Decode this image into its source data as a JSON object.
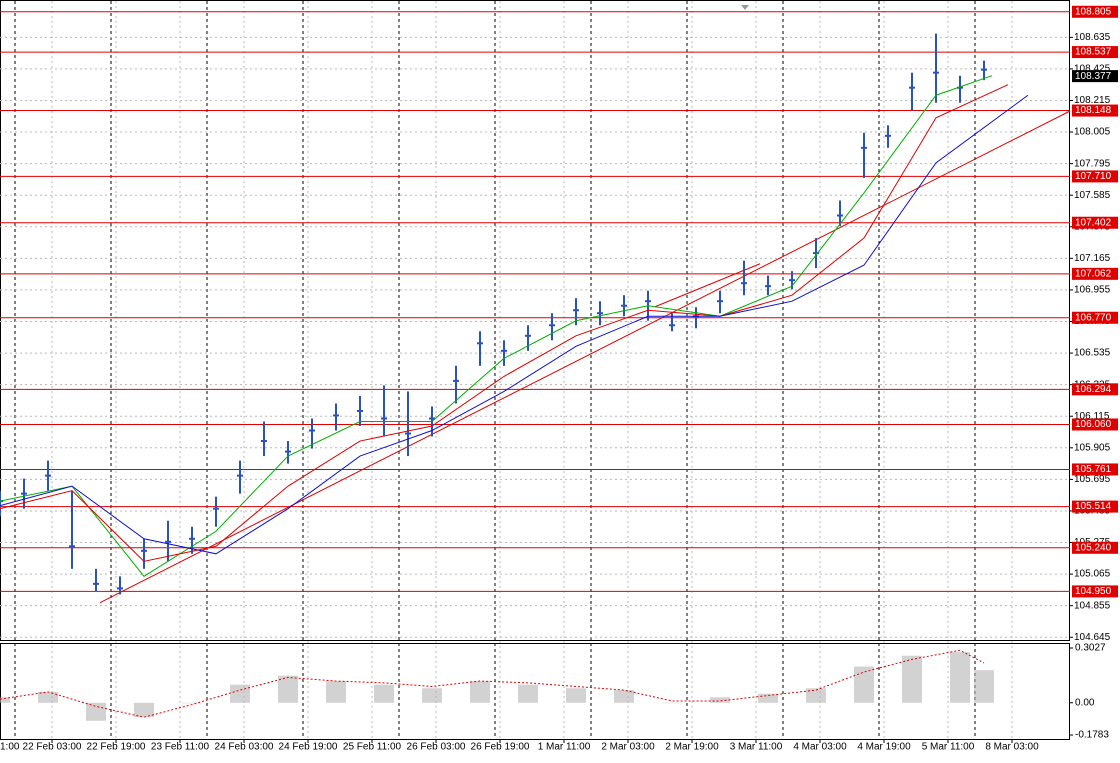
{
  "chart_data": {
    "type": "candlestick",
    "color": "#2a52be",
    "x": [
      3,
      9,
      15,
      21,
      27,
      33,
      39,
      45,
      51,
      57,
      63,
      69,
      75,
      81,
      87,
      93,
      99,
      105,
      111,
      117,
      123,
      129,
      135,
      141,
      147,
      153,
      159,
      165,
      171,
      177,
      183,
      189,
      195,
      201,
      207,
      213,
      219,
      225,
      231,
      237,
      243,
      249
    ],
    "high": [
      105.62,
      105.7,
      105.82,
      105.62,
      105.1,
      105.05,
      105.3,
      105.42,
      105.38,
      105.58,
      105.82,
      106.08,
      105.95,
      106.1,
      106.2,
      106.25,
      106.32,
      106.28,
      106.18,
      106.45,
      106.68,
      106.62,
      106.72,
      106.8,
      106.9,
      106.88,
      106.92,
      106.95,
      106.8,
      106.84,
      106.95,
      107.15,
      107.05,
      107.08,
      107.3,
      107.55,
      108,
      108.05,
      108.4,
      108.66,
      108.38,
      108.48
    ],
    "low": [
      105.45,
      105.5,
      105.62,
      105.1,
      104.95,
      104.93,
      105.1,
      105.15,
      105.2,
      105.38,
      105.6,
      105.85,
      105.8,
      105.9,
      106.02,
      106.05,
      105.98,
      105.85,
      105.98,
      106.2,
      106.45,
      106.45,
      106.55,
      106.62,
      106.72,
      106.72,
      106.78,
      106.75,
      106.68,
      106.7,
      106.8,
      106.92,
      106.92,
      106.96,
      107.1,
      107.38,
      107.7,
      107.9,
      108.15,
      108.2,
      108.2,
      108.35
    ],
    "close": [
      105.55,
      105.6,
      105.72,
      105.25,
      105,
      104.97,
      105.22,
      105.28,
      105.3,
      105.5,
      105.72,
      105.95,
      105.88,
      106.02,
      106.12,
      106.15,
      106.1,
      106,
      106.1,
      106.35,
      106.6,
      106.55,
      106.65,
      106.72,
      106.82,
      106.8,
      106.85,
      106.88,
      106.72,
      106.78,
      106.88,
      107,
      106.98,
      107.02,
      107.2,
      107.45,
      107.9,
      107.98,
      108.3,
      108.4,
      108.3,
      108.42
    ],
    "xlim": [
      3,
      270.5
    ],
    "xticks": [
      {
        "value": 0,
        "label": "1:00"
      },
      {
        "value": 16,
        "label": "22 Feb 03:00"
      },
      {
        "value": 32,
        "label": "22 Feb 19:00"
      },
      {
        "value": 48,
        "label": "23 Feb 11:00"
      },
      {
        "value": 64,
        "label": "24 Feb 03:00"
      },
      {
        "value": 80,
        "label": "24 Feb 19:00"
      },
      {
        "value": 96,
        "label": "25 Feb 11:00"
      },
      {
        "value": 112,
        "label": "26 Feb 03:00"
      },
      {
        "value": 128,
        "label": "26 Feb 19:00"
      },
      {
        "value": 144,
        "label": "1 Mar 11:00"
      },
      {
        "value": 160,
        "label": "2 Mar 03:00"
      },
      {
        "value": 176,
        "label": "2 Mar 19:00"
      },
      {
        "value": 192,
        "label": "3 Mar 11:00"
      },
      {
        "value": 208,
        "label": "4 Mar 03:00"
      },
      {
        "value": 224,
        "label": "4 Mar 19:00"
      },
      {
        "value": 240,
        "label": "5 Mar 11:00"
      },
      {
        "value": 256,
        "label": "8 Mar 03:00"
      }
    ],
    "ylim": [
      104.64,
      108.87
    ],
    "yticks": [
      108.635,
      108.425,
      108.215,
      108.005,
      107.795,
      107.585,
      107.375,
      107.165,
      106.955,
      106.745,
      106.535,
      106.325,
      106.115,
      105.905,
      105.695,
      105.485,
      105.275,
      105.065,
      104.855,
      104.645
    ],
    "grid": true,
    "moving_averages": [
      {
        "color": "#00b000",
        "x": [
          3,
          21,
          39,
          57,
          75,
          93,
          111,
          129,
          147,
          165,
          183,
          201,
          219,
          237,
          251
        ],
        "values": [
          105.55,
          105.65,
          105.05,
          105.35,
          105.85,
          106.08,
          106.08,
          106.5,
          106.75,
          106.85,
          106.78,
          106.98,
          107.6,
          108.25,
          108.38
        ]
      },
      {
        "color": "#e00000",
        "x": [
          3,
          21,
          39,
          57,
          75,
          93,
          111,
          129,
          147,
          165,
          183,
          201,
          219,
          237,
          255
        ],
        "values": [
          105.5,
          105.62,
          105.15,
          105.25,
          105.65,
          105.95,
          106.05,
          106.38,
          106.65,
          106.82,
          106.78,
          106.92,
          107.3,
          108.1,
          108.32
        ]
      },
      {
        "color": "#1010d0",
        "x": [
          3,
          21,
          39,
          57,
          75,
          93,
          111,
          129,
          147,
          165,
          183,
          201,
          219,
          237,
          260
        ],
        "values": [
          105.52,
          105.65,
          105.3,
          105.2,
          105.5,
          105.85,
          106.02,
          106.28,
          106.58,
          106.78,
          106.78,
          106.88,
          107.12,
          107.8,
          108.25
        ]
      }
    ],
    "trendlines": [
      {
        "color": "#e00000",
        "x": [
          28,
          270.5
        ],
        "values": [
          104.875,
          108.145
        ]
      },
      {
        "color": "#e00000",
        "x": [
          166.75,
          193
        ],
        "values": [
          106.843,
          107.129
        ]
      }
    ],
    "level_color": "#e00000",
    "levels": [
      108.805,
      108.537,
      108.148,
      {
        "value": 107.71,
        "label": "107.710"
      },
      107.402,
      107.062,
      {
        "value": 106.77,
        "label": "106.770"
      },
      106.294,
      {
        "value": 106.06,
        "label": "106.060"
      },
      105.761,
      105.514,
      {
        "value": 105.24,
        "label": "105.240"
      },
      {
        "value": 104.95,
        "label": "104.950"
      }
    ],
    "last_price": 108.377,
    "macd": {
      "x": [
        3,
        15,
        27,
        39,
        51,
        63,
        75,
        87,
        99,
        111,
        123,
        135,
        147,
        159,
        171,
        183,
        195,
        207,
        219,
        231,
        243,
        249
      ],
      "histogram": [
        0.03,
        0.06,
        -0.1,
        -0.08,
        0,
        0.1,
        0.15,
        0.12,
        0.1,
        0.08,
        0.12,
        0.1,
        0.08,
        0.07,
        0,
        0.03,
        0.05,
        0.08,
        0.2,
        0.26,
        0.28,
        0.18
      ],
      "signal": [
        0.02,
        0.06,
        -0.02,
        -0.08,
        -0.01,
        0.07,
        0.14,
        0.12,
        0.11,
        0.09,
        0.12,
        0.11,
        0.09,
        0.07,
        0.01,
        0.01,
        0.04,
        0.07,
        0.17,
        0.24,
        0.29,
        0.22
      ],
      "ylim": [
        -0.1783,
        0.3027
      ],
      "yticks": [
        0.3027,
        {
          "value": 0,
          "label": "0.00"
        },
        -0.1783
      ],
      "histogram_color": "#b4b4b4",
      "signal_color": "#e00000"
    }
  }
}
